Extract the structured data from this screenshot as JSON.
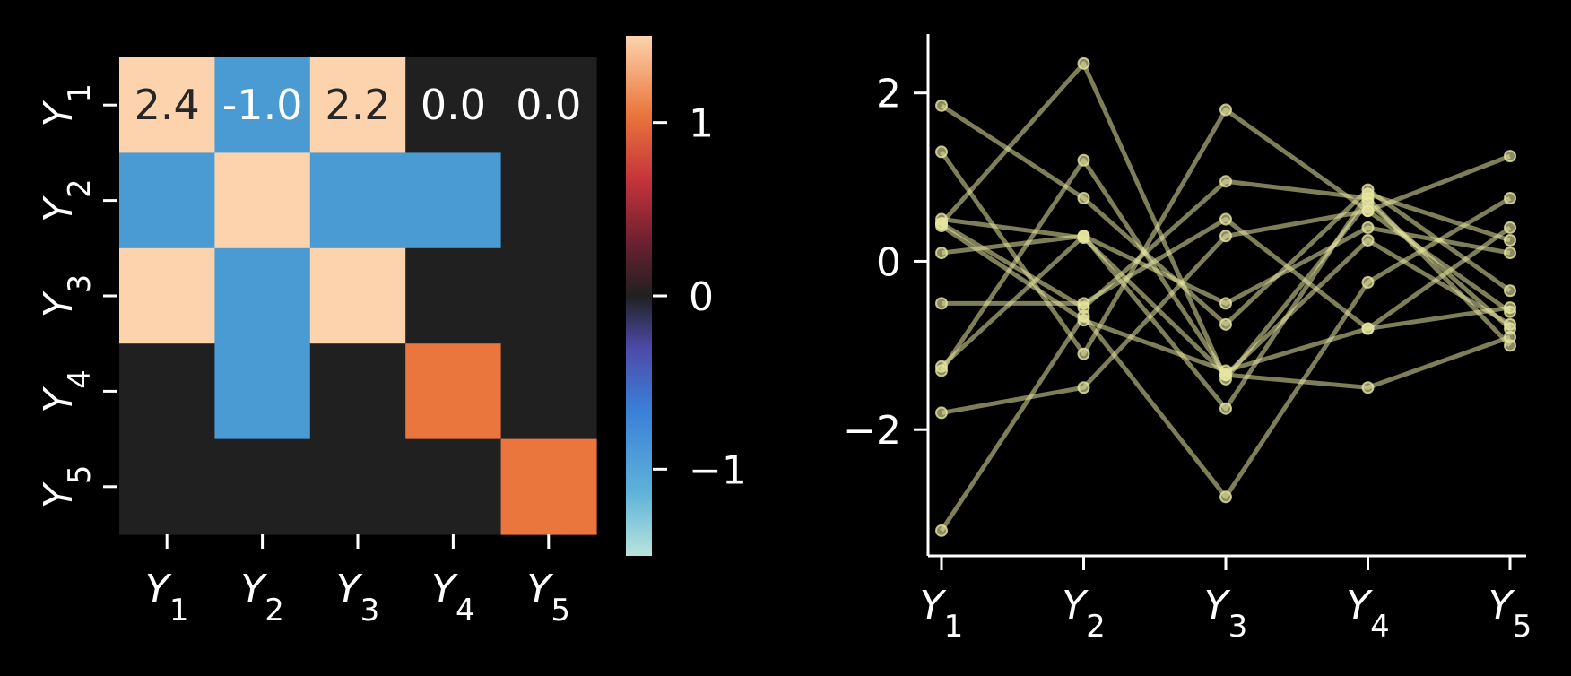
{
  "chart_data": [
    {
      "type": "heatmap",
      "row_labels": [
        "Y1",
        "Y2",
        "Y3",
        "Y4",
        "Y5"
      ],
      "col_labels": [
        "Y1",
        "Y2",
        "Y3",
        "Y4",
        "Y5"
      ],
      "values": [
        [
          2.4,
          -1.0,
          2.2,
          0.0,
          0.0
        ],
        [
          -1.0,
          2.4,
          -1.0,
          -1.1,
          0.0
        ],
        [
          2.2,
          -1.0,
          2.2,
          0.0,
          0.0
        ],
        [
          0.0,
          -1.0,
          0.0,
          1.0,
          0.0
        ],
        [
          0.0,
          0.0,
          0.0,
          0.0,
          1.0
        ]
      ],
      "annotations": [
        {
          "row": 0,
          "col": 0,
          "text": "2.4"
        },
        {
          "row": 0,
          "col": 1,
          "text": "-1.0"
        },
        {
          "row": 0,
          "col": 2,
          "text": "2.2"
        },
        {
          "row": 0,
          "col": 3,
          "text": "0.0"
        },
        {
          "row": 0,
          "col": 4,
          "text": "0.0"
        }
      ],
      "colorbar": {
        "vmin": -1.5,
        "vmax": 1.5,
        "ticks": [
          1,
          0,
          -1
        ],
        "tick_labels": [
          "1",
          "0",
          "−1"
        ]
      },
      "colors": {
        "high": "#fdd3ad",
        "low": "#b9e4dd",
        "mid": "#202020",
        "neg": "#4a9bd3",
        "pos": "#ea763d"
      }
    },
    {
      "type": "line",
      "categories": [
        "Y1",
        "Y2",
        "Y3",
        "Y4",
        "Y5"
      ],
      "ylim": [
        -3.5,
        2.7
      ],
      "yticks": [
        2,
        0,
        -2
      ],
      "ytick_labels": [
        "2",
        "0",
        "−2"
      ],
      "line_color": "#e6e6a0",
      "series": [
        {
          "values": [
            1.85,
            0.75,
            -0.75,
            0.85,
            -0.35
          ]
        },
        {
          "values": [
            1.3,
            -1.1,
            1.8,
            0.6,
            -0.6
          ]
        },
        {
          "values": [
            0.45,
            2.35,
            -1.4,
            0.7,
            -0.8
          ]
        },
        {
          "values": [
            0.45,
            -0.55,
            0.95,
            0.75,
            -1.0
          ]
        },
        {
          "values": [
            0.1,
            0.3,
            -1.75,
            0.8,
            0.25
          ]
        },
        {
          "values": [
            -0.5,
            -0.5,
            0.5,
            -0.8,
            -0.55
          ]
        },
        {
          "values": [
            -1.25,
            0.3,
            -0.5,
            0.4,
            0.1
          ]
        },
        {
          "values": [
            -1.3,
            1.2,
            -1.35,
            0.25,
            -0.75
          ]
        },
        {
          "values": [
            -1.8,
            -1.5,
            0.3,
            0.6,
            1.25
          ]
        },
        {
          "values": [
            -3.2,
            -0.65,
            -2.8,
            -0.25,
            0.75
          ]
        },
        {
          "values": [
            0.42,
            -0.7,
            -1.3,
            -0.8,
            0.4
          ]
        },
        {
          "values": [
            0.5,
            0.28,
            -1.35,
            -1.5,
            -0.9
          ]
        }
      ]
    }
  ]
}
